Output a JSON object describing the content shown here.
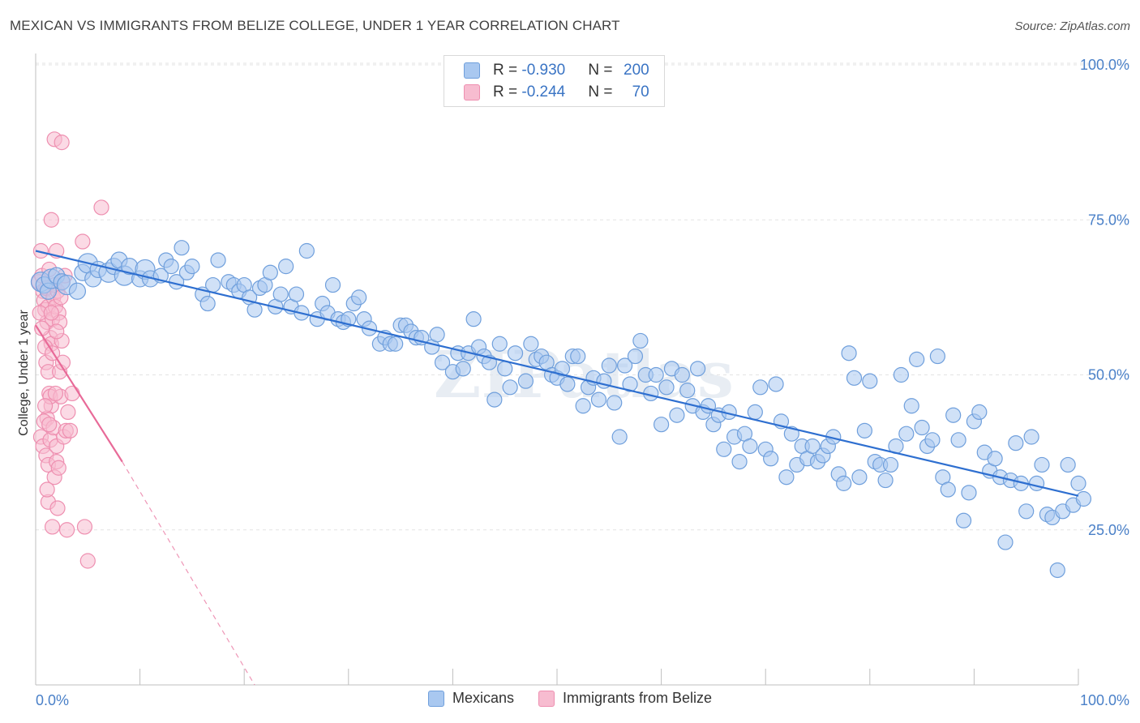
{
  "title": "MEXICAN VS IMMIGRANTS FROM BELIZE COLLEGE, UNDER 1 YEAR CORRELATION CHART",
  "source": "Source: ZipAtlas.com",
  "watermark": "ZIPatlas",
  "colors": {
    "blue_fill": "#a9c8f0",
    "blue_stroke": "#6f9fdc",
    "blue_line": "#2e6fd0",
    "pink_fill": "#f7bcd0",
    "pink_stroke": "#ee8fb0",
    "pink_line": "#e86a98",
    "tick_text": "#4a80c8"
  },
  "legend": {
    "rows": [
      {
        "r_label": "R = ",
        "r_value": "-0.930",
        "n_label": "N = ",
        "n_value": "200",
        "color": "#a9c8f0"
      },
      {
        "r_label": "R = ",
        "r_value": "-0.244",
        "n_label": "N = ",
        "n_value": "70",
        "color": "#f7bcd0"
      }
    ]
  },
  "chart_data": {
    "type": "scatter",
    "title": "MEXICAN VS IMMIGRANTS FROM BELIZE COLLEGE, UNDER 1 YEAR CORRELATION CHART",
    "xlabel": "",
    "ylabel": "College, Under 1 year",
    "xlim": [
      0,
      100
    ],
    "ylim": [
      0,
      100
    ],
    "x_tick_labels": [
      "0.0%",
      "100.0%"
    ],
    "y_ticks": [
      {
        "value": 25,
        "label": "25.0%"
      },
      {
        "value": 50,
        "label": "50.0%"
      },
      {
        "value": 75,
        "label": "75.0%"
      },
      {
        "value": 100,
        "label": "100.0%"
      }
    ],
    "grid": true,
    "legend_position": "bottom",
    "series": [
      {
        "name": "Mexicans",
        "R": -0.93,
        "N": 200,
        "trend": {
          "x": [
            0,
            100
          ],
          "y": [
            70,
            30.5
          ]
        },
        "points": [
          [
            0.5,
            65
          ],
          [
            0.8,
            64.5
          ],
          [
            1.2,
            63.5
          ],
          [
            1.5,
            65.5
          ],
          [
            2,
            66
          ],
          [
            2.5,
            65
          ],
          [
            3,
            64.5
          ],
          [
            4,
            63.5
          ],
          [
            4.5,
            66.5
          ],
          [
            5,
            68
          ],
          [
            5.5,
            65.5
          ],
          [
            6,
            67
          ],
          [
            7,
            66.5
          ],
          [
            7.5,
            67.5
          ],
          [
            8,
            68.5
          ],
          [
            8.5,
            66
          ],
          [
            9,
            67.5
          ],
          [
            10,
            65.5
          ],
          [
            10.5,
            67
          ],
          [
            11,
            65.5
          ],
          [
            12,
            66
          ],
          [
            12.5,
            68.5
          ],
          [
            13,
            67.5
          ],
          [
            13.5,
            65
          ],
          [
            14,
            70.5
          ],
          [
            14.5,
            66.5
          ],
          [
            15,
            67.5
          ],
          [
            16,
            63
          ],
          [
            16.5,
            61.5
          ],
          [
            17,
            64.5
          ],
          [
            17.5,
            68.5
          ],
          [
            18.5,
            65
          ],
          [
            19,
            64.5
          ],
          [
            19.5,
            63.5
          ],
          [
            20,
            64.5
          ],
          [
            20.5,
            62.5
          ],
          [
            21,
            60.5
          ],
          [
            21.5,
            64
          ],
          [
            22,
            64.5
          ],
          [
            22.5,
            66.5
          ],
          [
            23,
            61
          ],
          [
            23.5,
            63
          ],
          [
            24,
            67.5
          ],
          [
            24.5,
            61
          ],
          [
            25,
            63
          ],
          [
            25.5,
            60
          ],
          [
            26,
            70
          ],
          [
            27,
            59
          ],
          [
            27.5,
            61.5
          ],
          [
            28,
            60
          ],
          [
            28.5,
            64.5
          ],
          [
            29,
            59
          ],
          [
            29.5,
            58.5
          ],
          [
            30,
            59
          ],
          [
            30.5,
            61.5
          ],
          [
            31,
            62.5
          ],
          [
            31.5,
            59
          ],
          [
            32,
            57.5
          ],
          [
            33,
            55
          ],
          [
            33.5,
            56
          ],
          [
            34,
            55
          ],
          [
            34.5,
            55
          ],
          [
            35,
            58
          ],
          [
            35.5,
            58
          ],
          [
            36,
            57
          ],
          [
            36.5,
            56
          ],
          [
            37,
            56
          ],
          [
            38,
            54.5
          ],
          [
            38.5,
            56.5
          ],
          [
            39,
            52
          ],
          [
            40,
            50.5
          ],
          [
            40.5,
            53.5
          ],
          [
            41,
            51
          ],
          [
            41.5,
            53.5
          ],
          [
            42,
            59
          ],
          [
            42.5,
            54.5
          ],
          [
            43,
            53
          ],
          [
            43.5,
            52
          ],
          [
            44,
            46
          ],
          [
            44.5,
            55
          ],
          [
            45,
            51
          ],
          [
            45.5,
            48
          ],
          [
            46,
            53.5
          ],
          [
            47,
            49
          ],
          [
            47.5,
            55
          ],
          [
            48,
            52.5
          ],
          [
            48.5,
            53
          ],
          [
            49,
            52
          ],
          [
            49.5,
            50
          ],
          [
            50,
            49.5
          ],
          [
            50.5,
            51
          ],
          [
            51,
            48.5
          ],
          [
            51.5,
            53
          ],
          [
            52,
            53
          ],
          [
            52.5,
            45
          ],
          [
            53,
            48
          ],
          [
            53.5,
            49.5
          ],
          [
            54,
            46
          ],
          [
            54.5,
            49
          ],
          [
            55,
            51.5
          ],
          [
            55.5,
            45.5
          ],
          [
            56,
            40
          ],
          [
            56.5,
            51.5
          ],
          [
            57,
            48.5
          ],
          [
            57.5,
            53
          ],
          [
            58,
            55.5
          ],
          [
            58.5,
            50
          ],
          [
            59,
            47
          ],
          [
            59.5,
            50
          ],
          [
            60,
            42
          ],
          [
            60.5,
            48
          ],
          [
            61,
            51
          ],
          [
            61.5,
            43.5
          ],
          [
            62,
            50
          ],
          [
            62.5,
            47.5
          ],
          [
            63,
            45
          ],
          [
            63.5,
            51
          ],
          [
            64,
            44
          ],
          [
            64.5,
            45
          ],
          [
            65,
            42
          ],
          [
            65.5,
            43.5
          ],
          [
            66,
            38
          ],
          [
            66.5,
            44
          ],
          [
            67,
            40
          ],
          [
            67.5,
            36
          ],
          [
            68,
            40.5
          ],
          [
            68.5,
            38.5
          ],
          [
            69,
            44
          ],
          [
            69.5,
            48
          ],
          [
            70,
            38
          ],
          [
            70.5,
            36.5
          ],
          [
            71,
            48.5
          ],
          [
            71.5,
            42.5
          ],
          [
            72,
            33.5
          ],
          [
            72.5,
            40.5
          ],
          [
            73,
            35.5
          ],
          [
            73.5,
            38.5
          ],
          [
            74,
            36.5
          ],
          [
            74.5,
            38.5
          ],
          [
            75,
            36
          ],
          [
            75.5,
            37
          ],
          [
            76,
            38.5
          ],
          [
            76.5,
            40
          ],
          [
            77,
            34
          ],
          [
            77.5,
            32.5
          ],
          [
            78,
            53.5
          ],
          [
            78.5,
            49.5
          ],
          [
            79,
            33.5
          ],
          [
            79.5,
            41
          ],
          [
            80,
            49
          ],
          [
            80.5,
            36
          ],
          [
            81,
            35.5
          ],
          [
            81.5,
            33
          ],
          [
            82,
            35.5
          ],
          [
            82.5,
            38.5
          ],
          [
            83,
            50
          ],
          [
            83.5,
            40.5
          ],
          [
            84,
            45
          ],
          [
            84.5,
            52.5
          ],
          [
            85,
            41.5
          ],
          [
            85.5,
            38.5
          ],
          [
            86,
            39.5
          ],
          [
            86.5,
            53
          ],
          [
            87,
            33.5
          ],
          [
            87.5,
            31.5
          ],
          [
            88,
            43.5
          ],
          [
            88.5,
            39.5
          ],
          [
            89,
            26.5
          ],
          [
            89.5,
            31
          ],
          [
            90,
            42.5
          ],
          [
            90.5,
            44
          ],
          [
            91,
            37.5
          ],
          [
            91.5,
            34.5
          ],
          [
            92,
            36.5
          ],
          [
            92.5,
            33.5
          ],
          [
            93,
            23
          ],
          [
            93.5,
            33
          ],
          [
            94,
            39
          ],
          [
            94.5,
            32.5
          ],
          [
            95,
            28
          ],
          [
            95.5,
            40
          ],
          [
            96,
            32.5
          ],
          [
            96.5,
            35.5
          ],
          [
            97,
            27.5
          ],
          [
            97.5,
            27
          ],
          [
            98,
            18.5
          ],
          [
            98.5,
            28
          ],
          [
            99,
            35.5
          ],
          [
            99.5,
            29
          ],
          [
            100,
            32.5
          ],
          [
            100.5,
            30
          ]
        ]
      },
      {
        "name": "Immigrants from Belize",
        "R": -0.244,
        "N": 70,
        "trend": {
          "x": [
            0,
            8.3
          ],
          "y": [
            58,
            36
          ]
        },
        "trend_extension": {
          "x": [
            8.3,
            21
          ],
          "y": [
            36,
            0
          ]
        },
        "points": [
          [
            0.3,
            65
          ],
          [
            0.5,
            70
          ],
          [
            0.6,
            66
          ],
          [
            0.7,
            63.5
          ],
          [
            0.8,
            62
          ],
          [
            0.9,
            60.5
          ],
          [
            1,
            64
          ],
          [
            1.1,
            58.5
          ],
          [
            1.2,
            61
          ],
          [
            1.3,
            67
          ],
          [
            1.4,
            56
          ],
          [
            1.5,
            55
          ],
          [
            1.6,
            59
          ],
          [
            1.7,
            62.5
          ],
          [
            1.8,
            64.5
          ],
          [
            0.4,
            60
          ],
          [
            0.6,
            57.5
          ],
          [
            0.9,
            54.5
          ],
          [
            1,
            52
          ],
          [
            1.2,
            50.5
          ],
          [
            1.3,
            47
          ],
          [
            1.5,
            45
          ],
          [
            1.1,
            43
          ],
          [
            0.8,
            42.5
          ],
          [
            1.4,
            46.5
          ],
          [
            1.6,
            53.5
          ],
          [
            1.9,
            61
          ],
          [
            2.1,
            63.5
          ],
          [
            2.2,
            60
          ],
          [
            2.3,
            58.5
          ],
          [
            2.4,
            62.5
          ],
          [
            2.5,
            55.5
          ],
          [
            2.6,
            65
          ],
          [
            2.8,
            66
          ],
          [
            2,
            57
          ],
          [
            0.5,
            40
          ],
          [
            0.7,
            38.5
          ],
          [
            1,
            37
          ],
          [
            1.2,
            35.5
          ],
          [
            1.4,
            39.5
          ],
          [
            1.7,
            41.5
          ],
          [
            2,
            38.5
          ],
          [
            1.8,
            88
          ],
          [
            2.5,
            87.5
          ],
          [
            1.5,
            75
          ],
          [
            2,
            70
          ],
          [
            4.5,
            71.5
          ],
          [
            6.3,
            77
          ],
          [
            1.2,
            29.5
          ],
          [
            1.6,
            25.5
          ],
          [
            2.1,
            28.5
          ],
          [
            3,
            25
          ],
          [
            4.7,
            25.5
          ],
          [
            5,
            20
          ],
          [
            2.3,
            50.5
          ],
          [
            2.4,
            46.5
          ],
          [
            1.9,
            47
          ],
          [
            1.3,
            42
          ],
          [
            2.7,
            40
          ],
          [
            2.9,
            41
          ],
          [
            3.1,
            44
          ],
          [
            3.3,
            41
          ],
          [
            2,
            36
          ],
          [
            1.8,
            33.5
          ],
          [
            1.1,
            31.5
          ],
          [
            0.9,
            45
          ],
          [
            2.2,
            35
          ],
          [
            3.5,
            47
          ],
          [
            2.6,
            52
          ],
          [
            1.5,
            60
          ]
        ]
      }
    ]
  },
  "bottom_legend": [
    {
      "label": "Mexicans",
      "color": "#a9c8f0"
    },
    {
      "label": "Immigrants from Belize",
      "color": "#f7bcd0"
    }
  ]
}
